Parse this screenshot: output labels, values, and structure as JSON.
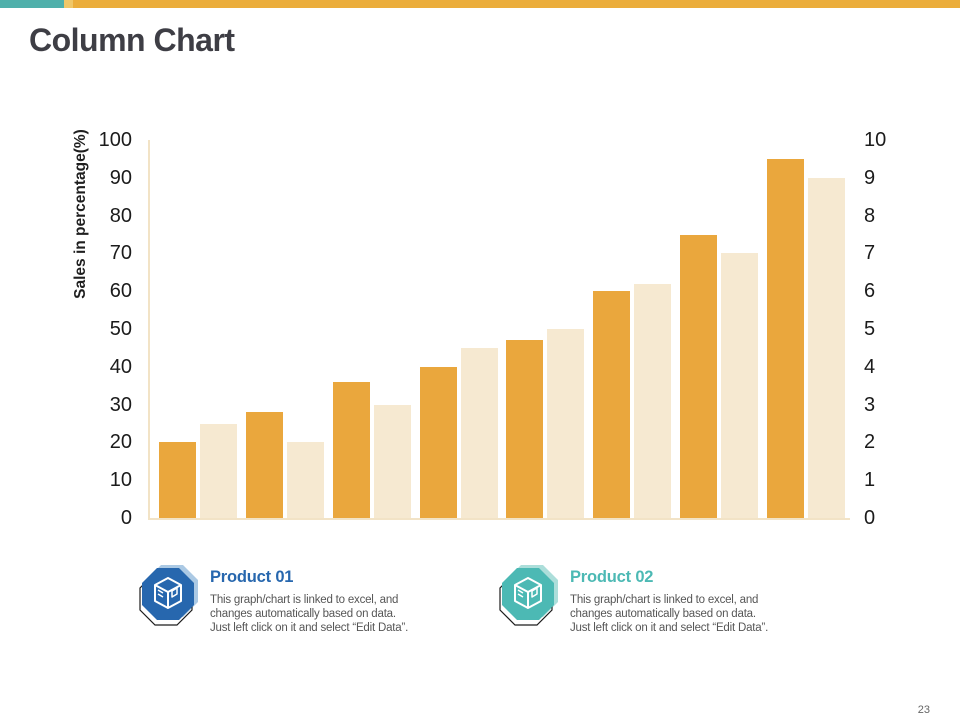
{
  "slide": {
    "title": "Column Chart",
    "page_number": "23",
    "top_bar_colors": {
      "teal": "#4FB0AB",
      "light": "#F0C768",
      "orange": "#EBAD3B"
    }
  },
  "chart_data": {
    "type": "bar",
    "title": "Column Chart",
    "ylabel": "Sales in percentage(%)",
    "ylim": [
      0,
      100
    ],
    "y2lim": [
      0,
      10
    ],
    "yticks_left": [
      100,
      90,
      80,
      70,
      60,
      50,
      40,
      30,
      20,
      10,
      0
    ],
    "yticks_right": [
      10,
      9,
      8,
      7,
      6,
      5,
      4,
      3,
      2,
      1,
      0
    ],
    "grid": false,
    "legend_position": "bottom",
    "axis_line_color": "#F2E3C6",
    "series": [
      {
        "name": "Product 01",
        "color": "#EAA73D",
        "values": [
          20,
          28,
          36,
          40,
          47,
          60,
          75,
          95
        ]
      },
      {
        "name": "Product 02",
        "color": "#F6E9D1",
        "values": [
          25,
          20,
          30,
          45,
          50,
          62,
          70,
          90
        ]
      }
    ]
  },
  "legend": {
    "items": [
      {
        "title": "Product 01",
        "icon": "cube-octagon-icon",
        "accent": "#2767AE",
        "shadow": "#ABC9E4",
        "desc_lines": [
          "This graph/chart is linked to excel, and",
          "changes automatically based on data.",
          "Just left click on it and select “Edit Data”."
        ]
      },
      {
        "title": "Product 02",
        "icon": "cube-octagon-icon",
        "accent": "#4CB9B4",
        "shadow": "#ACDEDA",
        "desc_lines": [
          "This graph/chart is linked to excel, and",
          "changes automatically based on data.",
          "Just left click on it and select “Edit Data”."
        ]
      }
    ]
  }
}
